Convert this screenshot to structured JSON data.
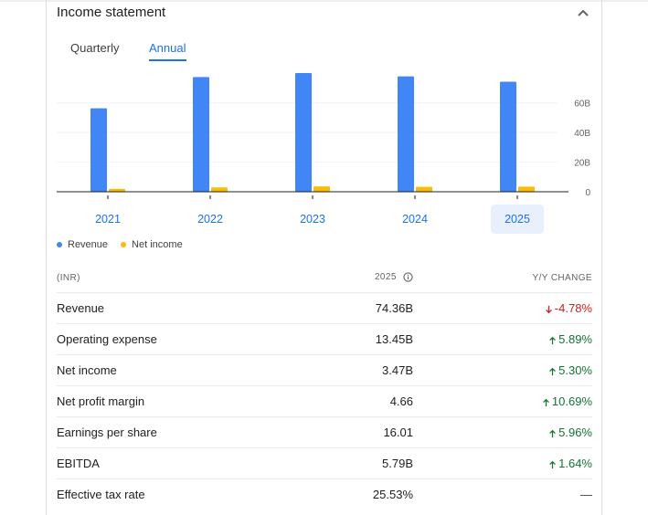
{
  "header": {
    "title": "Income statement",
    "collapse_icon": "chevron-up-icon"
  },
  "tabs": [
    {
      "label": "Quarterly",
      "selected": false
    },
    {
      "label": "Annual",
      "selected": true
    }
  ],
  "chart_data": {
    "type": "bar",
    "categories": [
      "2021",
      "2022",
      "2023",
      "2024",
      "2025"
    ],
    "selected_category": "2025",
    "series": [
      {
        "name": "Revenue",
        "color": "#4285f4",
        "values": [
          56.4,
          77.5,
          80.2,
          78.0,
          74.36
        ]
      },
      {
        "name": "Net income",
        "color": "#fbbc04",
        "values": [
          1.9,
          2.9,
          3.6,
          3.3,
          3.47
        ]
      }
    ],
    "y_ticks": [
      "60B",
      "40B",
      "20B",
      "0"
    ],
    "y_tick_values": [
      60,
      40,
      20,
      0
    ],
    "ylim": [
      0,
      80.2
    ],
    "grid": true,
    "legend_position": "bottom-left"
  },
  "table": {
    "headers": {
      "label": "(INR)",
      "value": "2025",
      "change": "Y/Y CHANGE"
    },
    "rows": [
      {
        "label": "Revenue",
        "value": "74.36B",
        "change": "-4.78%",
        "direction": "down"
      },
      {
        "label": "Operating expense",
        "value": "13.45B",
        "change": "5.89%",
        "direction": "up"
      },
      {
        "label": "Net income",
        "value": "3.47B",
        "change": "5.30%",
        "direction": "up"
      },
      {
        "label": "Net profit margin",
        "value": "4.66",
        "change": "10.69%",
        "direction": "up"
      },
      {
        "label": "Earnings per share",
        "value": "16.01",
        "change": "5.96%",
        "direction": "up"
      },
      {
        "label": "EBITDA",
        "value": "5.79B",
        "change": "1.64%",
        "direction": "up"
      },
      {
        "label": "Effective tax rate",
        "value": "25.53%",
        "change": "—",
        "direction": "flat"
      }
    ]
  },
  "colors": {
    "accent": "#1a73e8",
    "up": "#137333",
    "down": "#c5221f"
  }
}
